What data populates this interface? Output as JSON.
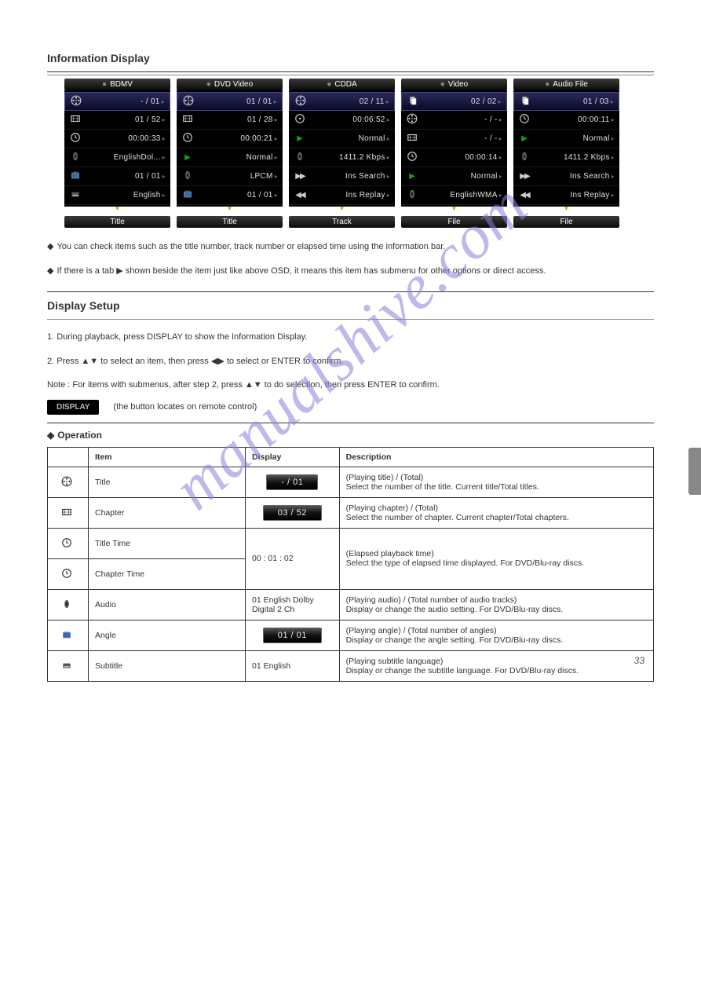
{
  "page_number": "33",
  "watermark": "manualshive.com",
  "section1_title": "Information Display",
  "panels": [
    {
      "title": "BDMV",
      "footer": "Title",
      "rows": [
        {
          "icon": "reel",
          "val": "- / 01",
          "hi": true
        },
        {
          "icon": "film",
          "val": "01 / 52"
        },
        {
          "icon": "clock",
          "val": "00:00:33"
        },
        {
          "icon": "spk",
          "val": "EnglishDol..."
        },
        {
          "icon": "tv",
          "val": "01 / 01"
        },
        {
          "icon": "sub",
          "val": "English"
        }
      ]
    },
    {
      "title": "DVD Video",
      "footer": "Title",
      "rows": [
        {
          "icon": "reel",
          "val": "01 / 01",
          "hi": true
        },
        {
          "icon": "film",
          "val": "01 / 28"
        },
        {
          "icon": "clock",
          "val": "00:00:21"
        },
        {
          "icon": "play",
          "val": "Normal"
        },
        {
          "icon": "spk",
          "val": "LPCM"
        },
        {
          "icon": "tv",
          "val": "01 / 01"
        }
      ]
    },
    {
      "title": "CDDA",
      "footer": "Track",
      "rows": [
        {
          "icon": "reel",
          "val": "02 / 11",
          "hi": true
        },
        {
          "icon": "disc",
          "val": "00:06:52"
        },
        {
          "icon": "play",
          "val": "Normal"
        },
        {
          "icon": "spk",
          "val": "1411.2 Kbps"
        },
        {
          "icon": "ffwd",
          "val": "Ins Search"
        },
        {
          "icon": "frwd",
          "val": "Ins Replay"
        }
      ]
    },
    {
      "title": "Video",
      "footer": "File",
      "rows": [
        {
          "icon": "docs",
          "val": "02 / 02",
          "hi": true
        },
        {
          "icon": "reel",
          "val": "- / -"
        },
        {
          "icon": "film",
          "val": "- / -"
        },
        {
          "icon": "clock",
          "val": "00:00:14"
        },
        {
          "icon": "play",
          "val": "Normal"
        },
        {
          "icon": "spk",
          "val": "EnglishWMA"
        }
      ]
    },
    {
      "title": "Audio File",
      "footer": "File",
      "rows": [
        {
          "icon": "docs",
          "val": "01 / 03",
          "hi": true
        },
        {
          "icon": "clock",
          "val": "00:00:11"
        },
        {
          "icon": "play",
          "val": "Normal"
        },
        {
          "icon": "spk",
          "val": "1411.2 Kbps"
        },
        {
          "icon": "ffwd",
          "val": "Ins Search"
        },
        {
          "icon": "frwd",
          "val": "Ins Replay"
        }
      ]
    }
  ],
  "desc_lines": [
    "You can check items such as the title number, track number or elapsed time using the information bar.",
    "If there is a tab ▶ shown beside the item just like above OSD, it means this item has submenu for other options or direct access."
  ],
  "section2_title": "Display Setup",
  "setup": {
    "steps": [
      "1. During playback, press DISPLAY to show the Information Display.",
      "2. Press ▲▼ to select an item, then press ◀▶ to select or ENTER to confirm.",
      "Note : For items with submenus, after step 2, press ▲▼ to do selection, then press ENTER to confirm."
    ],
    "btn_display": "DISPLAY",
    "btn_note": "(the button locates on remote control)"
  },
  "section3_title": "Operation",
  "table": {
    "headers": [
      "",
      "Item",
      "Display",
      "Description"
    ],
    "rows": [
      {
        "icon": "reel",
        "item": "Title",
        "display_pill": "- / 01",
        "desc": "(Playing title) / (Total)\nSelect the number of the title. Current title/Total titles."
      },
      {
        "icon": "film",
        "item": "Chapter",
        "display_pill": "03 / 52",
        "desc": "(Playing chapter) / (Total)\nSelect the number of chapter. Current chapter/Total chapters."
      },
      {
        "icon": "clock",
        "item": "Title Time\nChapter Time",
        "display": "00 : 01 : 02",
        "desc": "(Elapsed playback time)\nSelect the type of elapsed time displayed. For DVD/Blu-ray discs."
      },
      {
        "icon": "spk",
        "item": "Audio",
        "display": "01 English Dolby\nDigital 2 Ch",
        "desc": "(Playing audio) / (Total number of audio tracks)\nDisplay or change the audio setting. For DVD/Blu-ray discs."
      },
      {
        "icon": "tv",
        "item": "Angle",
        "display_pill": "01 / 01",
        "desc": "(Playing angle) / (Total number of angles)\nDisplay or change the angle setting. For DVD/Blu-ray discs."
      },
      {
        "icon": "sub",
        "item": "Subtitle",
        "display": "01 English",
        "desc": "(Playing subtitle language)\nDisplay or change the subtitle language. For DVD/Blu-ray discs."
      }
    ]
  }
}
